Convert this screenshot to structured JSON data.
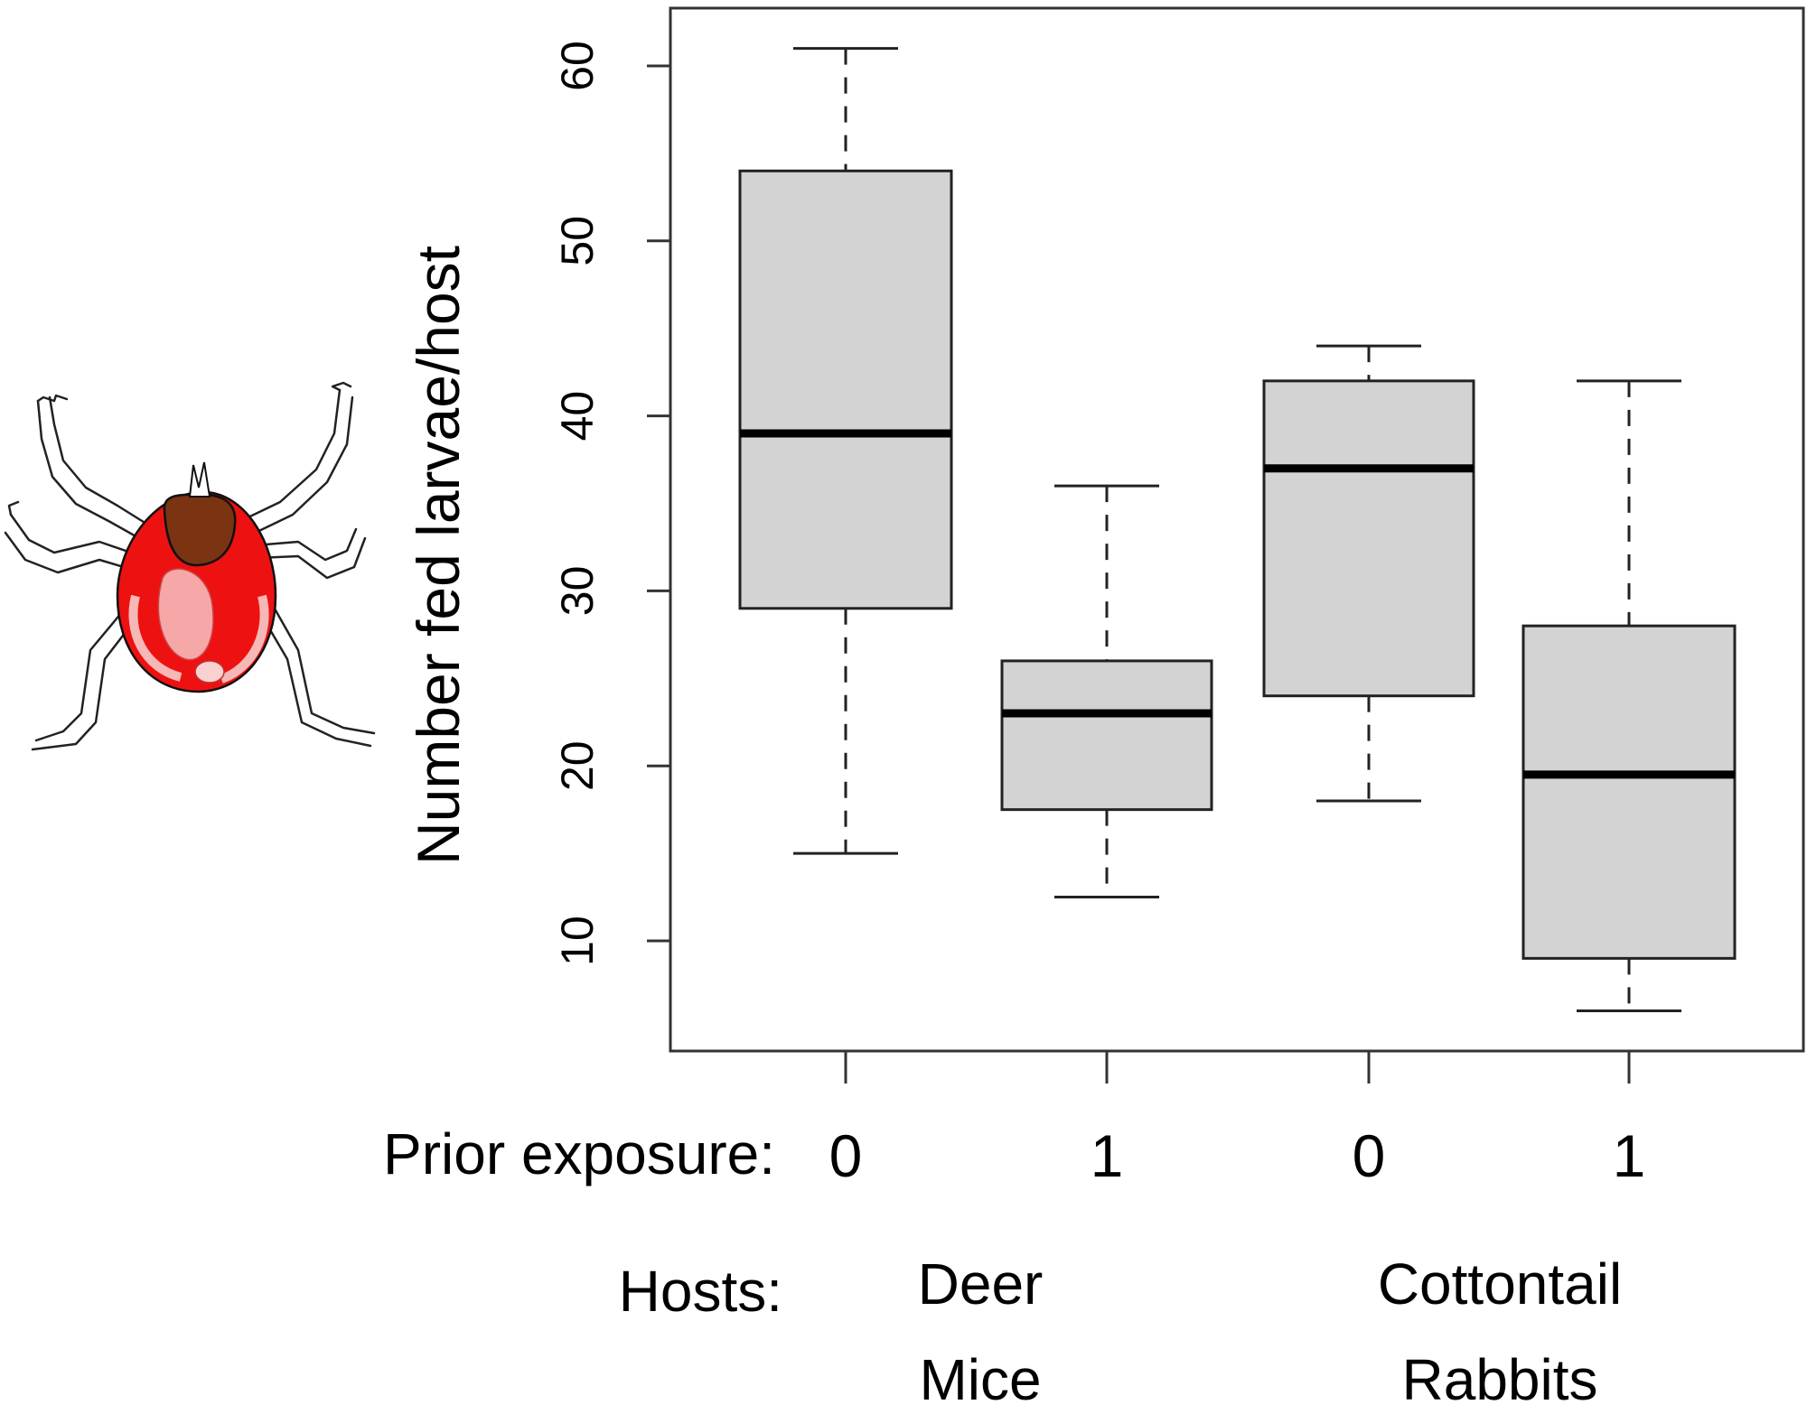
{
  "chart_data": {
    "type": "boxplot",
    "ylabel": "Number fed larvae/host",
    "ylim": [
      4,
      64
    ],
    "yticks": [
      10,
      20,
      30,
      40,
      50,
      60
    ],
    "xaxis_caption": "Prior exposure:",
    "group_caption": "Hosts:",
    "categories": [
      "0",
      "1",
      "0",
      "1"
    ],
    "groups": [
      {
        "label_lines": [
          "Deer",
          "Mice"
        ],
        "members": [
          0,
          1
        ]
      },
      {
        "label_lines": [
          "Cottontail",
          "Rabbits"
        ],
        "members": [
          2,
          3
        ]
      }
    ],
    "boxes": [
      {
        "category": "0",
        "min": 15,
        "q1": 29,
        "median": 39,
        "q3": 54,
        "max": 61
      },
      {
        "category": "1",
        "min": 12.5,
        "q1": 17.5,
        "median": 23,
        "q3": 26,
        "max": 36
      },
      {
        "category": "0",
        "min": 18,
        "q1": 24,
        "median": 37,
        "q3": 42,
        "max": 44
      },
      {
        "category": "1",
        "min": 6,
        "q1": 9,
        "median": 19.5,
        "q3": 28,
        "max": 42
      }
    ],
    "grid": false,
    "box_fill": "#d3d3d3"
  },
  "illustration": {
    "name": "tick-illustration",
    "body_color": "#ee1111",
    "head_color": "#7a3412"
  }
}
